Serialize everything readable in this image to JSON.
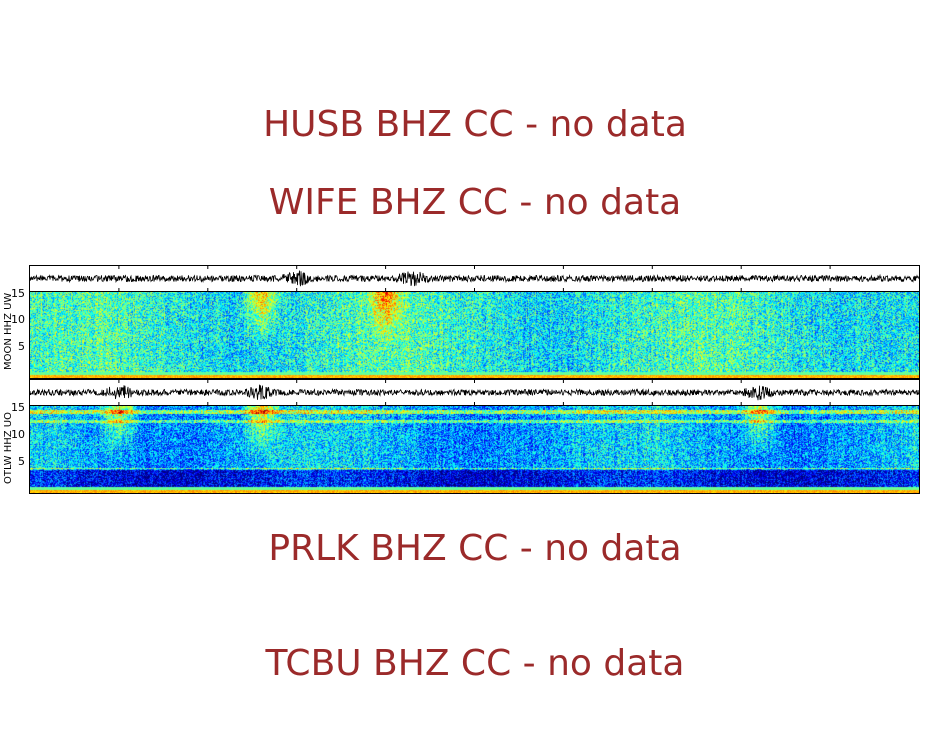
{
  "messages": {
    "husb": "HUSB BHZ CC - no data",
    "wife": "WIFE BHZ CC - no data",
    "prlk": "PRLK BHZ CC - no data",
    "tcbu": "TCBU BHZ CC - no data"
  },
  "colors": {
    "no_data_text": "#9b2a2a",
    "waveform": "#000000"
  },
  "chart_data": [
    {
      "type": "heatmap",
      "station_label": "MOON HHZ UW",
      "ylabel": "MOON HHZ UW",
      "ytick_labels": [
        "15",
        "10",
        "5"
      ],
      "ylim": [
        0,
        16
      ],
      "colormap": "jet",
      "x_tick_count": 10,
      "waveform_bursts": [
        0.3,
        0.43
      ]
    },
    {
      "type": "heatmap",
      "station_label": "OTLW HHZ UO",
      "ylabel": "OTLW HHZ UO",
      "ytick_labels": [
        "15",
        "10",
        "5"
      ],
      "ylim": [
        0,
        16
      ],
      "colormap": "jet",
      "x_tick_count": 10,
      "waveform_bursts": [
        0.1,
        0.26,
        0.82
      ]
    }
  ]
}
